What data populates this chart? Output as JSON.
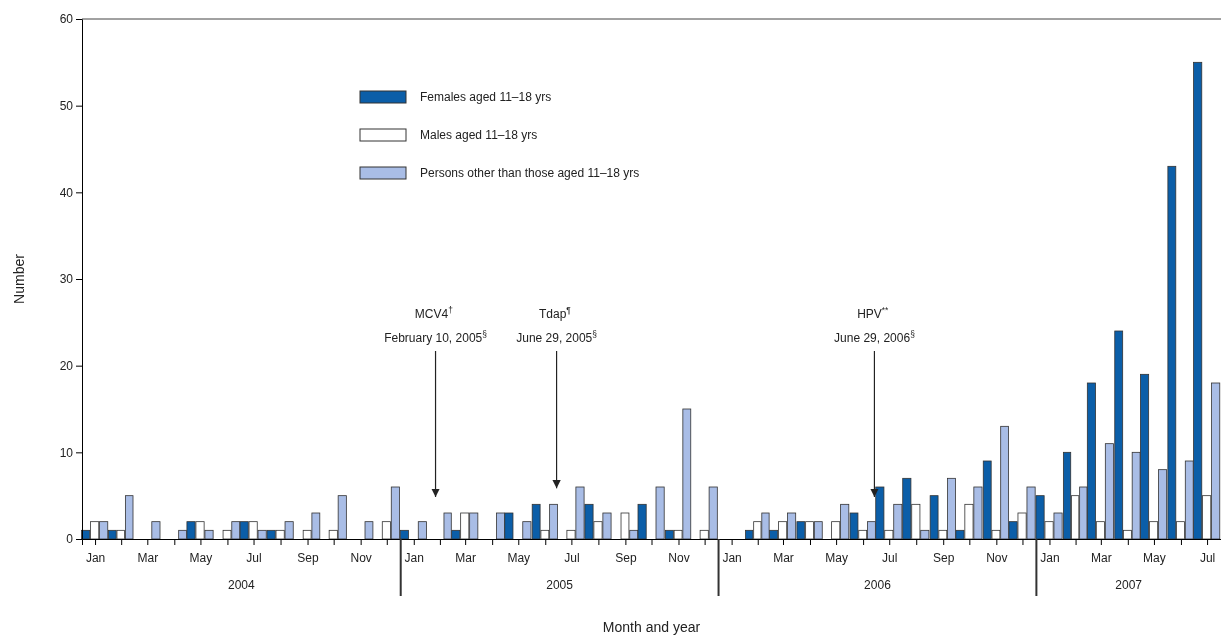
{
  "chart_data": {
    "type": "bar",
    "xlabel": "Month and year",
    "ylabel": "Number",
    "x": [
      "2004-01-16",
      "2004-02-15",
      "2004-03-16",
      "2004-04-16",
      "2004-05-16",
      "2004-06-16",
      "2004-07-16",
      "2004-08-16",
      "2004-09-16",
      "2004-10-16",
      "2004-11-16",
      "2004-12-16",
      "2005-01-16",
      "2005-02-15",
      "2005-03-16",
      "2005-04-16",
      "2005-05-16",
      "2005-06-16",
      "2005-07-16",
      "2005-08-16",
      "2005-09-16",
      "2005-10-16",
      "2005-11-16",
      "2005-12-16",
      "2006-01-16",
      "2006-02-15",
      "2006-03-16",
      "2006-04-16",
      "2006-05-16",
      "2006-06-16",
      "2006-07-16",
      "2006-08-16",
      "2006-09-16",
      "2006-10-16",
      "2006-11-16",
      "2006-12-16",
      "2007-01-16",
      "2007-02-15",
      "2007-03-16",
      "2007-04-16",
      "2007-05-16",
      "2007-06-16",
      "2007-07-16"
    ],
    "series": [
      {
        "name": "Females aged 11–18 yrs",
        "color": "#0b5ea8",
        "values": [
          1,
          1,
          0,
          0,
          2,
          0,
          2,
          1,
          0,
          0,
          0,
          0,
          1,
          0,
          1,
          0,
          3,
          4,
          0,
          4,
          0,
          4,
          1,
          0,
          0,
          1,
          1,
          2,
          0,
          3,
          6,
          7,
          5,
          1,
          9,
          2,
          5,
          10,
          18,
          24,
          19,
          43,
          55
        ]
      },
      {
        "name": "Males aged 11–18 yrs",
        "color": "#ffffff",
        "values": [
          2,
          1,
          0,
          0,
          2,
          1,
          2,
          1,
          1,
          1,
          0,
          2,
          0,
          0,
          3,
          0,
          0,
          1,
          1,
          2,
          3,
          0,
          1,
          1,
          0,
          2,
          2,
          2,
          2,
          1,
          1,
          4,
          1,
          4,
          1,
          3,
          2,
          5,
          2,
          1,
          2,
          2,
          5
        ]
      },
      {
        "name": "Persons other than those aged 11–18 yrs",
        "color": "#a9bde6",
        "values": [
          2,
          5,
          2,
          1,
          1,
          2,
          1,
          2,
          3,
          5,
          2,
          6,
          2,
          3,
          3,
          3,
          2,
          4,
          6,
          3,
          1,
          6,
          15,
          6,
          0,
          3,
          3,
          2,
          4,
          2,
          4,
          1,
          7,
          6,
          13,
          6,
          3,
          6,
          11,
          10,
          8,
          9,
          18
        ]
      }
    ],
    "xlim": [
      "2004-01",
      "2007-08"
    ],
    "xticks": [
      {
        "value": "2004-01-16",
        "label": "Jan"
      },
      {
        "value": "2004-02-15",
        "label": null
      },
      {
        "value": "2004-03-16",
        "label": "Mar"
      },
      {
        "value": "2004-04-16",
        "label": null
      },
      {
        "value": "2004-05-16",
        "label": "May"
      },
      {
        "value": "2004-06-16",
        "label": null
      },
      {
        "value": "2004-07-16",
        "label": "Jul"
      },
      {
        "value": "2004-08-16",
        "label": null
      },
      {
        "value": "2004-09-16",
        "label": "Sep"
      },
      {
        "value": "2004-10-16",
        "label": null
      },
      {
        "value": "2004-11-16",
        "label": "Nov"
      },
      {
        "value": "2004-12-16",
        "label": null
      },
      {
        "value": "2005-01-16",
        "label": "Jan"
      },
      {
        "value": "2005-02-15",
        "label": null
      },
      {
        "value": "2005-03-16",
        "label": "Mar"
      },
      {
        "value": "2005-04-16",
        "label": null
      },
      {
        "value": "2005-05-16",
        "label": "May"
      },
      {
        "value": "2005-06-16",
        "label": null
      },
      {
        "value": "2005-07-16",
        "label": "Jul"
      },
      {
        "value": "2005-08-16",
        "label": null
      },
      {
        "value": "2005-09-16",
        "label": "Sep"
      },
      {
        "value": "2005-10-16",
        "label": null
      },
      {
        "value": "2005-11-16",
        "label": "Nov"
      },
      {
        "value": "2005-12-16",
        "label": null
      },
      {
        "value": "2006-01-16",
        "label": "Jan"
      },
      {
        "value": "2006-02-15",
        "label": null
      },
      {
        "value": "2006-03-16",
        "label": "Mar"
      },
      {
        "value": "2006-04-16",
        "label": null
      },
      {
        "value": "2006-05-16",
        "label": "May"
      },
      {
        "value": "2006-06-16",
        "label": null
      },
      {
        "value": "2006-07-16",
        "label": "Jul"
      },
      {
        "value": "2006-08-16",
        "label": null
      },
      {
        "value": "2006-09-16",
        "label": "Sep"
      },
      {
        "value": "2006-10-16",
        "label": null
      },
      {
        "value": "2006-11-16",
        "label": "Nov"
      },
      {
        "value": "2006-12-16",
        "label": null
      },
      {
        "value": "2007-01-16",
        "label": "Jan"
      },
      {
        "value": "2007-02-15",
        "label": null
      },
      {
        "value": "2007-03-16",
        "label": "Mar"
      },
      {
        "value": "2007-04-16",
        "label": null
      },
      {
        "value": "2007-05-16",
        "label": "May"
      },
      {
        "value": "2007-06-16",
        "label": null
      },
      {
        "value": "2007-07-16",
        "label": "Jul"
      }
    ],
    "ylim": [
      0,
      60
    ],
    "yticks": [
      0,
      10,
      20,
      30,
      40,
      50,
      60
    ],
    "legend": "top left",
    "annotations": [
      "2004",
      "2005",
      "2006",
      "2007"
    ],
    "ref_lines": [
      {
        "axis": "x",
        "value": "2005-02-10",
        "label": "MCV4$^{†}$ February 10, 2005$^{§}$"
      },
      {
        "axis": "x",
        "value": "2005-06-29",
        "label": "Tdap$^{¶}$ June 29, 2005$^{§}$"
      },
      {
        "axis": "x",
        "value": "2006-06-29",
        "label": "HPV$^{**}$ June 29, 2006$^{§}$"
      }
    ]
  }
}
